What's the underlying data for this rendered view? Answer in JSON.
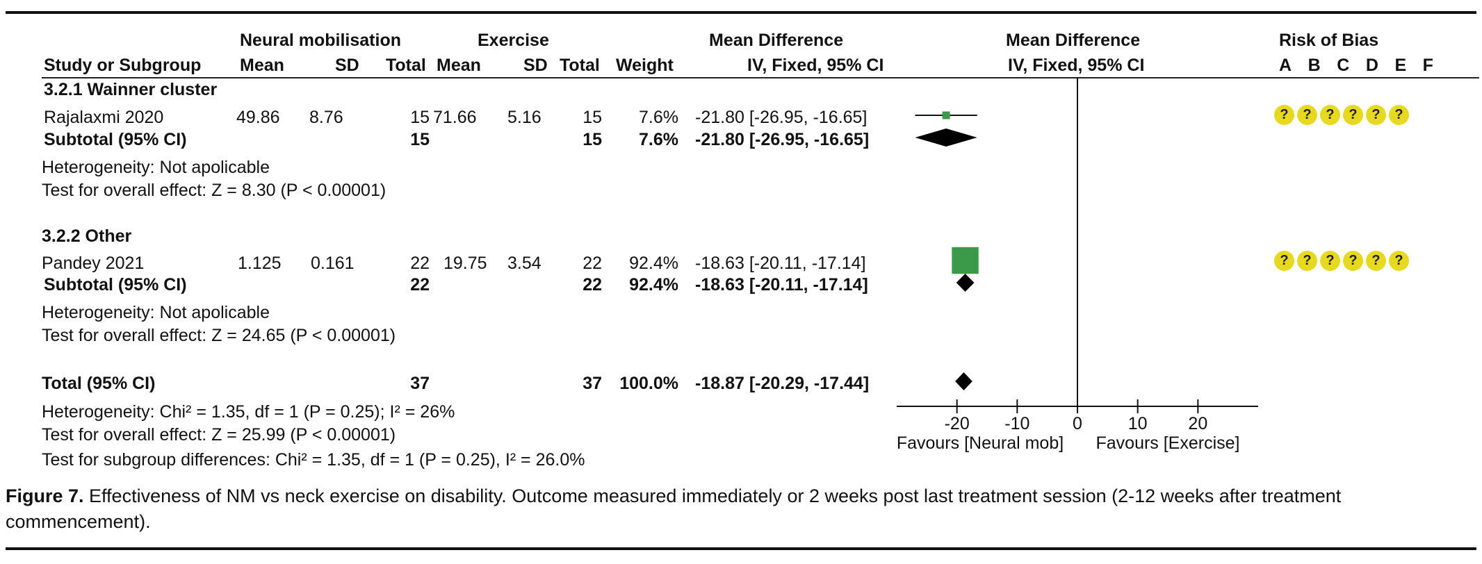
{
  "header": {
    "group_neural": "Neural mobilisation",
    "group_exercise": "Exercise",
    "col_study": "Study or Subgroup",
    "col_mean": "Mean",
    "col_sd": "SD",
    "col_total": "Total",
    "col_weight": "Weight",
    "md_title": "Mean Difference",
    "md_method": "IV, Fixed, 95% CI",
    "plot_title": "Mean Difference",
    "plot_method": "IV, Fixed, 95% CI",
    "rob_title": "Risk of Bias",
    "rob_letters": [
      "A",
      "B",
      "C",
      "D",
      "E",
      "F"
    ]
  },
  "subgroup1": {
    "title": "3.2.1 Wainner cluster",
    "study": {
      "name": "Rajalaxmi 2020",
      "nm_mean": "49.86",
      "nm_sd": "8.76",
      "nm_total": "15",
      "ex_mean": "71.66",
      "ex_sd": "5.16",
      "ex_total": "15",
      "weight": "7.6%",
      "ci": "-21.80 [-26.95, -16.65]",
      "rob": [
        "?",
        "?",
        "?",
        "?",
        "?",
        "?"
      ]
    },
    "subtotal": {
      "label": "Subtotal (95% CI)",
      "nm_total": "15",
      "ex_total": "15",
      "weight": "7.6%",
      "ci": "-21.80 [-26.95, -16.65]"
    },
    "heterogeneity": "Heterogeneity: Not apolicable",
    "overall": "Test for overall effect: Z = 8.30 (P < 0.00001)"
  },
  "subgroup2": {
    "title": "3.2.2 Other",
    "study": {
      "name": "Pandey 2021",
      "nm_mean": "1.125",
      "nm_sd": "0.161",
      "nm_total": "22",
      "ex_mean": "19.75",
      "ex_sd": "3.54",
      "ex_total": "22",
      "weight": "92.4%",
      "ci": "-18.63 [-20.11, -17.14]",
      "rob": [
        "?",
        "?",
        "?",
        "?",
        "?",
        "?"
      ]
    },
    "subtotal": {
      "label": "Subtotal (95% CI)",
      "nm_total": "22",
      "ex_total": "22",
      "weight": "92.4%",
      "ci": "-18.63 [-20.11, -17.14]"
    },
    "heterogeneity": "Heterogeneity: Not apolicable",
    "overall": "Test for overall effect: Z = 24.65 (P < 0.00001)"
  },
  "total": {
    "label": "Total (95% CI)",
    "nm_total": "37",
    "ex_total": "37",
    "weight": "100.0%",
    "ci": "-18.87 [-20.29, -17.44]",
    "heterogeneity": "Heterogeneity: Chi² = 1.35, df = 1 (P = 0.25); I² = 26%",
    "overall": "Test for overall effect: Z = 25.99 (P < 0.00001)",
    "subgroup_diff": "Test for subgroup differences: Chi² = 1.35, df = 1 (P = 0.25), I² = 26.0%"
  },
  "axis": {
    "favours_left": "Favours [Neural mob]",
    "favours_right": "Favours [Exercise]"
  },
  "caption": {
    "label": "Figure 7.",
    "text": " Effectiveness of NM vs neck exercise on disability. Outcome measured immediately or 2 weeks post last treatment session (2-12 weeks after treatment commencement)."
  },
  "colors": {
    "study_square": "#3a9a4a",
    "diamond": "#000000",
    "rob_unclear": "#e6d91f"
  },
  "chart_data": {
    "type": "forest",
    "xlim": [
      -30,
      30
    ],
    "ticks": [
      -20,
      -10,
      0,
      10,
      20
    ],
    "tick_labels": [
      "-20",
      "-10",
      "0",
      "10",
      "20"
    ],
    "xlabel_left": "Favours [Neural mob]",
    "xlabel_right": "Favours [Exercise]",
    "studies": [
      {
        "name": "Rajalaxmi 2020",
        "md": -21.8,
        "lo": -26.95,
        "hi": -16.65,
        "weight": 7.6
      },
      {
        "name": "Pandey 2021",
        "md": -18.63,
        "lo": -20.11,
        "hi": -17.14,
        "weight": 92.4
      }
    ],
    "subtotals": [
      {
        "name": "Subtotal 3.2.1",
        "md": -21.8,
        "lo": -26.95,
        "hi": -16.65
      },
      {
        "name": "Subtotal 3.2.2",
        "md": -18.63,
        "lo": -20.11,
        "hi": -17.14
      }
    ],
    "overall": {
      "name": "Total",
      "md": -18.87,
      "lo": -20.29,
      "hi": -17.44
    }
  }
}
